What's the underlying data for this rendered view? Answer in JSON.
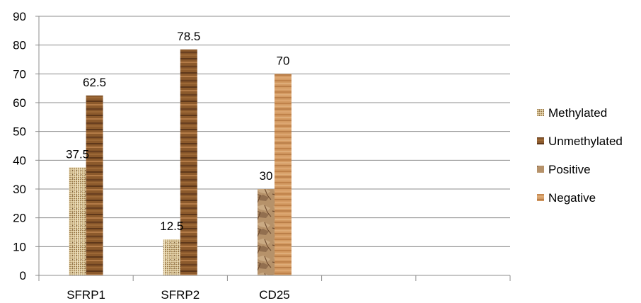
{
  "chart_data": {
    "type": "bar",
    "categories": [
      "SFRP1",
      "SFRP2",
      "CD25",
      "",
      ""
    ],
    "series": [
      {
        "name": "Methylated",
        "values": [
          37.5,
          12.5,
          null,
          null,
          null
        ],
        "pattern": "burlap"
      },
      {
        "name": "Unmethylated",
        "values": [
          62.5,
          78.5,
          null,
          null,
          null
        ],
        "pattern": "darkwood"
      },
      {
        "name": "Positive",
        "values": [
          null,
          null,
          30,
          null,
          null
        ],
        "pattern": "stone"
      },
      {
        "name": "Negative",
        "values": [
          null,
          null,
          70,
          null,
          null
        ],
        "pattern": "lightwood"
      }
    ],
    "data_labels": [
      "37.5",
      "62.5",
      "12.5",
      "78.5",
      "30",
      "70"
    ],
    "y_ticks": [
      "0",
      "10",
      "20",
      "30",
      "40",
      "50",
      "60",
      "70",
      "80",
      "90"
    ],
    "ylim": [
      0,
      90
    ],
    "grid": true,
    "legend_position": "right",
    "colors": {
      "burlap": "#d3bf8f",
      "darkwood": "#8a5a2c",
      "stone": "#b6926a",
      "lightwood": "#d59a62",
      "grid": "#8c8c8c"
    }
  }
}
